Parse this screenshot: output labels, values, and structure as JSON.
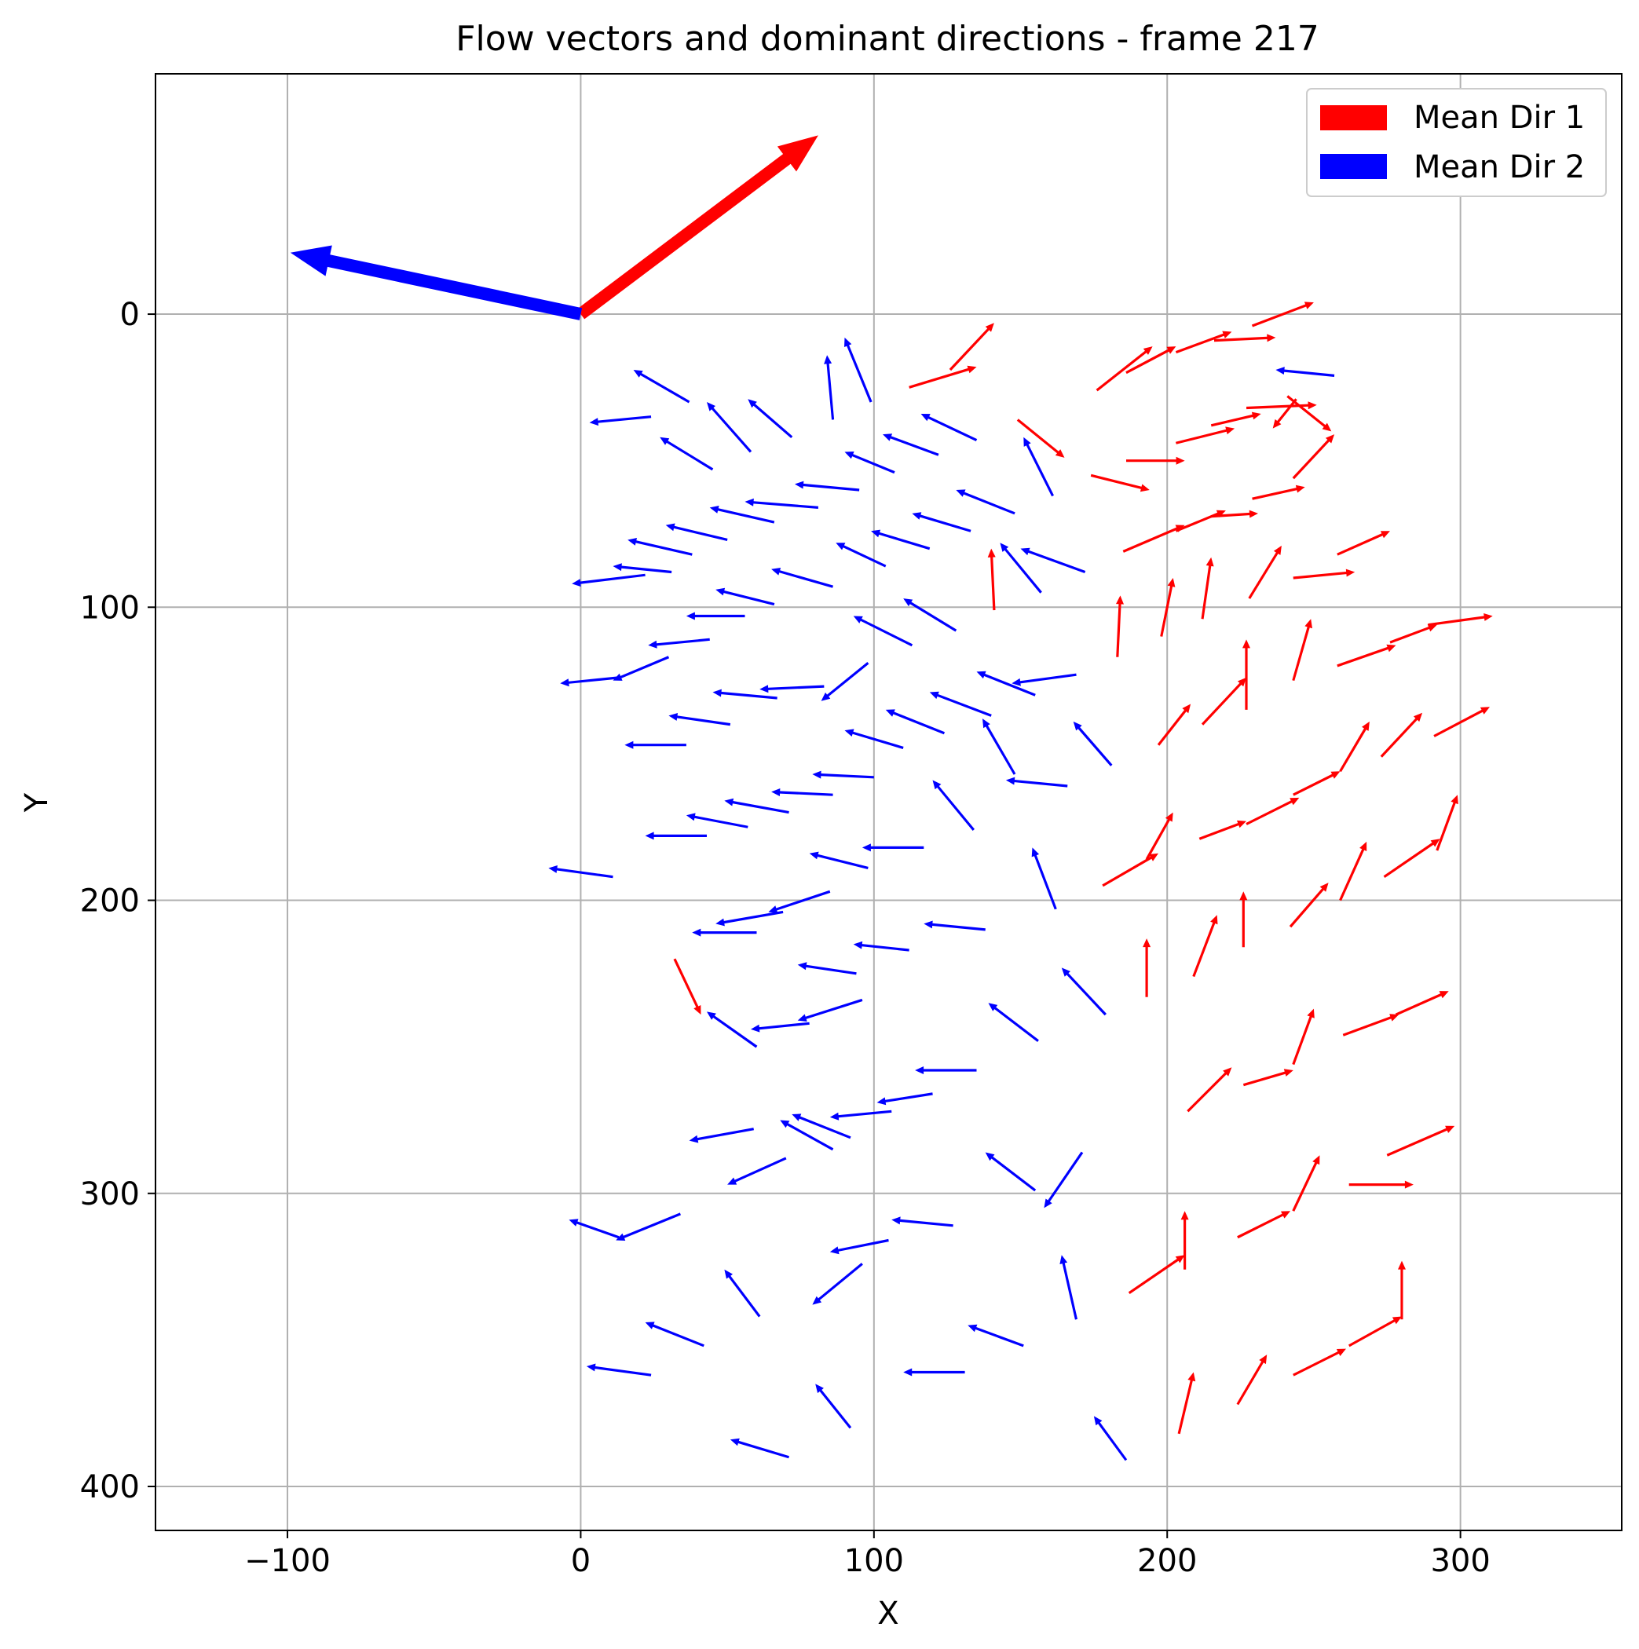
{
  "chart_data": {
    "type": "quiver",
    "title": "Flow vectors and dominant directions - frame 217",
    "xlabel": "X",
    "ylabel": "Y",
    "xlim": [
      -145,
      355
    ],
    "ylim": [
      415,
      -82
    ],
    "y_inverted": true,
    "grid": true,
    "xticks": [
      -100,
      0,
      100,
      200,
      300
    ],
    "xtick_labels": [
      "−100",
      "0",
      "100",
      "200",
      "300"
    ],
    "yticks": [
      0,
      100,
      200,
      300,
      400
    ],
    "ytick_labels": [
      "0",
      "100",
      "200",
      "300",
      "400"
    ],
    "legend": {
      "placement": "upper right",
      "entries": [
        {
          "label": "Mean Dir 1",
          "color": "#ff0000"
        },
        {
          "label": "Mean Dir 2",
          "color": "#0000ff"
        }
      ]
    },
    "mean_directions": [
      {
        "name": "Mean Dir 1",
        "color": "#ff0000",
        "x": 0,
        "y": 0,
        "u": 81,
        "v": -61
      },
      {
        "name": "Mean Dir 2",
        "color": "#0000ff",
        "x": 0,
        "y": 0,
        "u": -99,
        "v": -21
      }
    ],
    "series": [
      {
        "name": "Mean Dir 1",
        "color": "#ff0000",
        "vectors": [
          [
            112,
            25,
            23,
            -7
          ],
          [
            126,
            19,
            15,
            -16
          ],
          [
            176,
            26,
            19,
            -15
          ],
          [
            186,
            20,
            17,
            -9
          ],
          [
            203,
            13,
            19,
            -7
          ],
          [
            216,
            9,
            21,
            -1
          ],
          [
            229,
            4,
            21,
            -8
          ],
          [
            241,
            28,
            15,
            12
          ],
          [
            149,
            36,
            16,
            13
          ],
          [
            186,
            50,
            20,
            0
          ],
          [
            174,
            55,
            20,
            5
          ],
          [
            203,
            44,
            20,
            -5
          ],
          [
            215,
            38,
            17,
            -4
          ],
          [
            227,
            32,
            24,
            -1
          ],
          [
            244,
            29,
            -8,
            10
          ],
          [
            229,
            63,
            18,
            -4
          ],
          [
            243,
            56,
            14,
            -15
          ],
          [
            185,
            81,
            21,
            -9
          ],
          [
            203,
            74,
            17,
            -7
          ],
          [
            215,
            69,
            16,
            -1
          ],
          [
            141,
            101,
            -1,
            -21
          ],
          [
            183,
            117,
            1,
            -21
          ],
          [
            198,
            110,
            4,
            -20
          ],
          [
            212,
            104,
            3,
            -21
          ],
          [
            228,
            97,
            11,
            -18
          ],
          [
            243,
            90,
            21,
            -2
          ],
          [
            258,
            82,
            18,
            -8
          ],
          [
            243,
            125,
            6,
            -21
          ],
          [
            227,
            135,
            0,
            -24
          ],
          [
            258,
            120,
            20,
            -7
          ],
          [
            276,
            112,
            16,
            -6
          ],
          [
            289,
            106,
            22,
            -3
          ],
          [
            197,
            147,
            11,
            -14
          ],
          [
            212,
            140,
            15,
            -16
          ],
          [
            273,
            151,
            14,
            -15
          ],
          [
            291,
            144,
            19,
            -10
          ],
          [
            259,
            156,
            10,
            -17
          ],
          [
            243,
            164,
            16,
            -8
          ],
          [
            227,
            174,
            18,
            -9
          ],
          [
            211,
            179,
            16,
            -6
          ],
          [
            178,
            195,
            19,
            -11
          ],
          [
            193,
            186,
            9,
            -16
          ],
          [
            259,
            200,
            9,
            -20
          ],
          [
            274,
            192,
            19,
            -13
          ],
          [
            292,
            183,
            7,
            -19
          ],
          [
            242,
            209,
            13,
            -15
          ],
          [
            193,
            233,
            0,
            -20
          ],
          [
            209,
            226,
            8,
            -21
          ],
          [
            226,
            216,
            0,
            -19
          ],
          [
            32,
            220,
            9,
            19
          ],
          [
            260,
            246,
            19,
            -7
          ],
          [
            278,
            239,
            18,
            -8
          ],
          [
            226,
            263,
            17,
            -5
          ],
          [
            243,
            256,
            7,
            -19
          ],
          [
            207,
            272,
            15,
            -15
          ],
          [
            275,
            287,
            23,
            -10
          ],
          [
            262,
            297,
            22,
            0
          ],
          [
            187,
            334,
            19,
            -13
          ],
          [
            206,
            326,
            0,
            -20
          ],
          [
            224,
            315,
            18,
            -9
          ],
          [
            243,
            306,
            9,
            -19
          ],
          [
            243,
            362,
            18,
            -9
          ],
          [
            262,
            352,
            18,
            -10
          ],
          [
            280,
            343,
            0,
            -20
          ],
          [
            204,
            382,
            5,
            -21
          ],
          [
            224,
            372,
            10,
            -17
          ]
        ]
      },
      {
        "name": "Mean Dir 2",
        "color": "#0000ff",
        "vectors": [
          [
            257,
            21,
            -20,
            -2
          ],
          [
            37,
            30,
            -19,
            -11
          ],
          [
            24,
            35,
            -21,
            2
          ],
          [
            45,
            53,
            -18,
            -11
          ],
          [
            58,
            47,
            -15,
            -17
          ],
          [
            72,
            42,
            -15,
            -13
          ],
          [
            86,
            36,
            -2,
            -22
          ],
          [
            99,
            30,
            -9,
            -22
          ],
          [
            135,
            43,
            -19,
            -9
          ],
          [
            122,
            48,
            -19,
            -7
          ],
          [
            107,
            54,
            -17,
            -7
          ],
          [
            95,
            60,
            -22,
            -2
          ],
          [
            161,
            62,
            -10,
            -20
          ],
          [
            81,
            66,
            -25,
            -2
          ],
          [
            66,
            71,
            -22,
            -5
          ],
          [
            148,
            68,
            -20,
            -8
          ],
          [
            133,
            74,
            -20,
            -6
          ],
          [
            119,
            80,
            -20,
            -6
          ],
          [
            104,
            86,
            -17,
            -8
          ],
          [
            86,
            93,
            -21,
            -6
          ],
          [
            50,
            77,
            -21,
            -5
          ],
          [
            38,
            82,
            -22,
            -5
          ],
          [
            172,
            88,
            -22,
            -8
          ],
          [
            157,
            95,
            -14,
            -17
          ],
          [
            66,
            99,
            -20,
            -5
          ],
          [
            31,
            88,
            -20,
            -2
          ],
          [
            22,
            89,
            -25,
            3
          ],
          [
            128,
            108,
            -18,
            -11
          ],
          [
            56,
            103,
            -20,
            0
          ],
          [
            113,
            113,
            -20,
            -10
          ],
          [
            44,
            111,
            -21,
            2
          ],
          [
            30,
            117,
            -19,
            8
          ],
          [
            13,
            124,
            -20,
            2
          ],
          [
            83,
            127,
            -22,
            1
          ],
          [
            67,
            131,
            -22,
            -2
          ],
          [
            98,
            119,
            -16,
            13
          ],
          [
            169,
            123,
            -22,
            3
          ],
          [
            155,
            130,
            -20,
            -8
          ],
          [
            140,
            137,
            -21,
            -8
          ],
          [
            124,
            143,
            -20,
            -8
          ],
          [
            110,
            148,
            -20,
            -6
          ],
          [
            51,
            140,
            -21,
            -3
          ],
          [
            36,
            147,
            -21,
            0
          ],
          [
            181,
            154,
            -13,
            -15
          ],
          [
            148,
            157,
            -11,
            -19
          ],
          [
            166,
            161,
            -21,
            -2
          ],
          [
            100,
            158,
            -21,
            -1
          ],
          [
            86,
            164,
            -21,
            -1
          ],
          [
            71,
            170,
            -22,
            -4
          ],
          [
            57,
            175,
            -21,
            -4
          ],
          [
            134,
            176,
            -14,
            -17
          ],
          [
            43,
            178,
            -21,
            0
          ],
          [
            117,
            182,
            -21,
            0
          ],
          [
            98,
            189,
            -20,
            -5
          ],
          [
            11,
            192,
            -22,
            -3
          ],
          [
            85,
            197,
            -21,
            7
          ],
          [
            69,
            204,
            -23,
            4
          ],
          [
            162,
            203,
            -8,
            -21
          ],
          [
            138,
            210,
            -21,
            -2
          ],
          [
            60,
            211,
            -22,
            0
          ],
          [
            112,
            217,
            -19,
            -2
          ],
          [
            60,
            250,
            -17,
            -12
          ],
          [
            94,
            225,
            -20,
            -3
          ],
          [
            179,
            239,
            -15,
            -16
          ],
          [
            96,
            234,
            -22,
            7
          ],
          [
            156,
            248,
            -17,
            -13
          ],
          [
            78,
            242,
            -20,
            2
          ],
          [
            59,
            278,
            -22,
            4
          ],
          [
            135,
            258,
            -21,
            0
          ],
          [
            106,
            272,
            -21,
            2
          ],
          [
            92,
            281,
            -20,
            -8
          ],
          [
            86,
            285,
            -18,
            -10
          ],
          [
            70,
            288,
            -20,
            9
          ],
          [
            120,
            266,
            -19,
            3
          ],
          [
            34,
            307,
            -22,
            9
          ],
          [
            171,
            286,
            -13,
            19
          ],
          [
            155,
            299,
            -17,
            -13
          ],
          [
            13,
            315,
            -17,
            -6
          ],
          [
            127,
            311,
            -21,
            -2
          ],
          [
            105,
            316,
            -20,
            4
          ],
          [
            96,
            324,
            -17,
            14
          ],
          [
            61,
            342,
            -12,
            -16
          ],
          [
            42,
            352,
            -20,
            -8
          ],
          [
            169,
            343,
            -5,
            -22
          ],
          [
            151,
            352,
            -19,
            -7
          ],
          [
            131,
            361,
            -21,
            0
          ],
          [
            24,
            362,
            -22,
            -3
          ],
          [
            92,
            380,
            -12,
            -15
          ],
          [
            186,
            391,
            -11,
            -15
          ],
          [
            71,
            390,
            -20,
            -6
          ]
        ]
      }
    ]
  }
}
